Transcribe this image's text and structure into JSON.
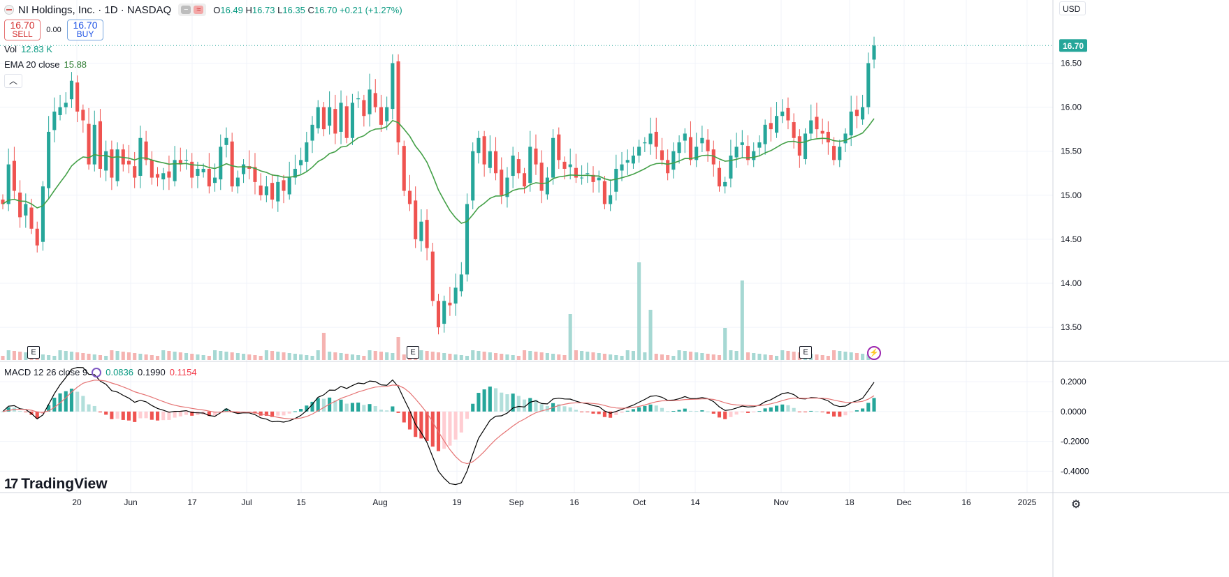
{
  "header": {
    "title": "NI Holdings, Inc. · 1D · NASDAQ",
    "ohlc": [
      {
        "k": "O",
        "v": "16.49"
      },
      {
        "k": "H",
        "v": "16.73"
      },
      {
        "k": "L",
        "v": "16.35"
      },
      {
        "k": "C",
        "v": "16.70"
      }
    ],
    "change": "+0.21 (+1.27%)"
  },
  "trade": {
    "sell_price": "16.70",
    "sell_label": "SELL",
    "spread": "0.00",
    "buy_price": "16.70",
    "buy_label": "BUY"
  },
  "indicators": {
    "vol_label": "Vol",
    "vol_value": "12.83 K",
    "ema_label": "EMA 20 close",
    "ema_value": "15.88",
    "collapse_icon": "chevron-up-icon",
    "macd_label": "MACD 12 26 close 9",
    "macd_values": [
      "0.0836",
      "0.1990",
      "0.1154"
    ]
  },
  "currency": "USD",
  "brand": "TradingView",
  "earnings_marker": "E",
  "colors": {
    "up": "#26a69a",
    "down": "#ef5350",
    "ema": "#43a047",
    "macd": "#000000",
    "signal": "#e57373",
    "price_tag": "#26a69a"
  },
  "chart_data": [
    {
      "type": "candlestick",
      "title": "NI Holdings, Inc. · 1D · NASDAQ",
      "y_ticks": [
        "16.50",
        "16.00",
        "15.50",
        "15.00",
        "14.50",
        "14.00",
        "13.50"
      ],
      "x_ticks": [
        "20",
        "Jun",
        "17",
        "Jul",
        "15",
        "Aug",
        "19",
        "Sep",
        "16",
        "Oct",
        "14",
        "Nov",
        "18",
        "Dec",
        "16",
        "2025"
      ],
      "ylim": [
        13.2,
        16.9
      ],
      "last_price": "16.70",
      "closes": [
        14.9,
        15.35,
        15.05,
        14.75,
        14.9,
        14.62,
        14.43,
        15.1,
        15.72,
        15.95,
        16.0,
        16.05,
        16.3,
        15.95,
        15.85,
        15.35,
        15.8,
        15.3,
        15.5,
        15.2,
        15.52,
        15.35,
        15.35,
        15.2,
        15.65,
        15.4,
        15.2,
        15.2,
        15.25,
        15.2,
        15.4,
        15.35,
        15.4,
        15.2,
        15.3,
        15.3,
        15.1,
        15.2,
        15.55,
        15.65,
        15.1,
        15.2,
        15.35,
        15.3,
        15.15,
        15.0,
        15.1,
        14.95,
        15.15,
        15.05,
        15.2,
        15.3,
        15.4,
        15.6,
        15.8,
        16.0,
        15.75,
        16.0,
        15.7,
        16.05,
        15.65,
        16.05,
        16.1,
        15.9,
        16.2,
        16.0,
        15.8,
        16.0,
        16.5,
        15.6,
        15.05,
        14.9,
        14.5,
        14.7,
        14.4,
        13.8,
        13.5,
        13.8,
        13.75,
        13.95,
        14.1,
        14.9,
        15.5,
        15.65,
        15.35,
        15.5,
        15.25,
        15.0,
        15.2,
        15.45,
        15.25,
        15.1,
        15.55,
        15.35,
        15.05,
        15.2,
        15.65,
        15.4,
        15.3,
        15.35,
        15.2,
        15.2,
        15.25,
        15.15,
        15.2,
        14.9,
        15.0,
        15.3,
        15.35,
        15.4,
        15.45,
        15.55,
        15.6,
        15.7,
        15.55,
        15.4,
        15.25,
        15.5,
        15.6,
        15.7,
        15.4,
        15.55,
        15.65,
        15.5,
        15.35,
        15.1,
        15.15,
        15.45,
        15.55,
        15.6,
        15.4,
        15.5,
        15.6,
        15.8,
        15.75,
        15.9,
        15.95,
        15.85,
        15.65,
        15.45,
        15.7,
        15.85,
        15.75,
        15.7,
        15.6,
        15.4,
        15.55,
        15.7,
        15.95,
        15.9,
        16.0,
        16.5,
        16.7
      ],
      "ema20_last": 15.88,
      "volume_last": "12.83 K",
      "earnings_at": [
        "May 8",
        "Aug 7",
        "Nov 7"
      ]
    },
    {
      "type": "macd",
      "title": "MACD 12 26 close 9",
      "y_ticks": [
        "0.2000",
        "0.0000",
        "-0.2000",
        "-0.4000"
      ],
      "ylim": [
        -0.45,
        0.28
      ],
      "macd_last": 0.199,
      "signal_last": 0.1154,
      "histogram_last": 0.0836
    }
  ]
}
